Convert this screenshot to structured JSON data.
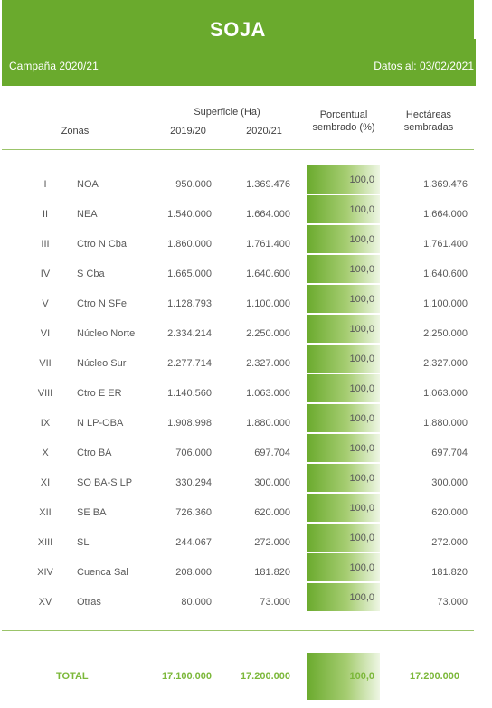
{
  "header": {
    "title": "SOJA",
    "campaign": "Campaña 2020/21",
    "date": "Datos al: 03/02/2021"
  },
  "columns": {
    "zonas": "Zonas",
    "superficie": "Superficie (Ha)",
    "y2019": "2019/20",
    "y2020": "2020/21",
    "pct_line1": "Porcentual",
    "pct_line2": "sembrado (%)",
    "ha_line1": "Hectáreas",
    "ha_line2": "sembradas"
  },
  "rows": [
    {
      "roman": "I",
      "zone": "NOA",
      "v2019": "950.000",
      "v2020": "1.369.476",
      "pct": "100,0",
      "pct_value": 100,
      "ha": "1.369.476"
    },
    {
      "roman": "II",
      "zone": "NEA",
      "v2019": "1.540.000",
      "v2020": "1.664.000",
      "pct": "100,0",
      "pct_value": 100,
      "ha": "1.664.000"
    },
    {
      "roman": "III",
      "zone": "Ctro N Cba",
      "v2019": "1.860.000",
      "v2020": "1.761.400",
      "pct": "100,0",
      "pct_value": 100,
      "ha": "1.761.400"
    },
    {
      "roman": "IV",
      "zone": "S Cba",
      "v2019": "1.665.000",
      "v2020": "1.640.600",
      "pct": "100,0",
      "pct_value": 100,
      "ha": "1.640.600"
    },
    {
      "roman": "V",
      "zone": "Ctro N SFe",
      "v2019": "1.128.793",
      "v2020": "1.100.000",
      "pct": "100,0",
      "pct_value": 100,
      "ha": "1.100.000"
    },
    {
      "roman": "VI",
      "zone": "Núcleo Norte",
      "v2019": "2.334.214",
      "v2020": "2.250.000",
      "pct": "100,0",
      "pct_value": 100,
      "ha": "2.250.000"
    },
    {
      "roman": "VII",
      "zone": "Núcleo Sur",
      "v2019": "2.277.714",
      "v2020": "2.327.000",
      "pct": "100,0",
      "pct_value": 100,
      "ha": "2.327.000"
    },
    {
      "roman": "VIII",
      "zone": "Ctro E ER",
      "v2019": "1.140.560",
      "v2020": "1.063.000",
      "pct": "100,0",
      "pct_value": 100,
      "ha": "1.063.000"
    },
    {
      "roman": "IX",
      "zone": "N LP-OBA",
      "v2019": "1.908.998",
      "v2020": "1.880.000",
      "pct": "100,0",
      "pct_value": 100,
      "ha": "1.880.000"
    },
    {
      "roman": "X",
      "zone": "Ctro BA",
      "v2019": "706.000",
      "v2020": "697.704",
      "pct": "100,0",
      "pct_value": 100,
      "ha": "697.704"
    },
    {
      "roman": "XI",
      "zone": "SO BA-S LP",
      "v2019": "330.294",
      "v2020": "300.000",
      "pct": "100,0",
      "pct_value": 100,
      "ha": "300.000"
    },
    {
      "roman": "XII",
      "zone": "SE BA",
      "v2019": "726.360",
      "v2020": "620.000",
      "pct": "100,0",
      "pct_value": 100,
      "ha": "620.000"
    },
    {
      "roman": "XIII",
      "zone": "SL",
      "v2019": "244.067",
      "v2020": "272.000",
      "pct": "100,0",
      "pct_value": 100,
      "ha": "272.000"
    },
    {
      "roman": "XIV",
      "zone": "Cuenca Sal",
      "v2019": "208.000",
      "v2020": "181.820",
      "pct": "100,0",
      "pct_value": 100,
      "ha": "181.820"
    },
    {
      "roman": "XV",
      "zone": "Otras",
      "v2019": "80.000",
      "v2020": "73.000",
      "pct": "100,0",
      "pct_value": 100,
      "ha": "73.000"
    }
  ],
  "total": {
    "label": "TOTAL",
    "v2019": "17.100.000",
    "v2020": "17.200.000",
    "pct": "100,0",
    "pct_value": 100,
    "ha": "17.200.000"
  },
  "colors": {
    "accent": "#6aaa2d",
    "total_text": "#7cb83a"
  }
}
